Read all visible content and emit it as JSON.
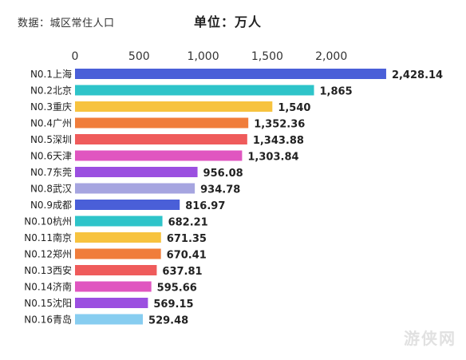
{
  "header": {
    "source_note": "数据：城区常住人口",
    "unit_note": "单位：万人"
  },
  "watermark": "游侠网",
  "chart_data": {
    "type": "bar",
    "orientation": "horizontal",
    "title": "",
    "xlabel": "",
    "ylabel": "",
    "xlim": [
      0,
      2428.14
    ],
    "x_ticks": [
      0,
      500,
      1000,
      1500,
      2000
    ],
    "x_tick_labels": [
      "0",
      "500",
      "1,000",
      "1,500",
      "2,000"
    ],
    "axis_position": "top",
    "grid": false,
    "legend": "none",
    "categories": [
      "N0.1上海",
      "N0.2北京",
      "N0.3重庆",
      "N0.4广州",
      "N0.5深圳",
      "N0.6天津",
      "N0.7东莞",
      "N0.8武汉",
      "N0.9成都",
      "N0.10杭州",
      "N0.11南京",
      "N0.12郑州",
      "N0.13西安",
      "N0.14济南",
      "N0.15沈阳",
      "N0.16青岛"
    ],
    "values": [
      2428.14,
      1865,
      1540,
      1352.36,
      1343.88,
      1303.84,
      956.08,
      934.78,
      816.97,
      682.21,
      671.35,
      670.41,
      637.81,
      595.66,
      569.15,
      529.48
    ],
    "value_labels": [
      "2,428.14",
      "1,865",
      "1,540",
      "1,352.36",
      "1,343.88",
      "1,303.84",
      "956.08",
      "934.78",
      "816.97",
      "682.21",
      "671.35",
      "670.41",
      "637.81",
      "595.66",
      "569.15",
      "529.48"
    ],
    "colors": [
      "#4a5fd8",
      "#2ec4c9",
      "#f7c33f",
      "#f07d3b",
      "#ef5b5b",
      "#e056c0",
      "#9b4fe0",
      "#a6a5e0",
      "#4a5fd8",
      "#2ec4c9",
      "#f7c33f",
      "#f07d3b",
      "#ef5b5b",
      "#e056c0",
      "#9b4fe0",
      "#87cdf0"
    ]
  }
}
